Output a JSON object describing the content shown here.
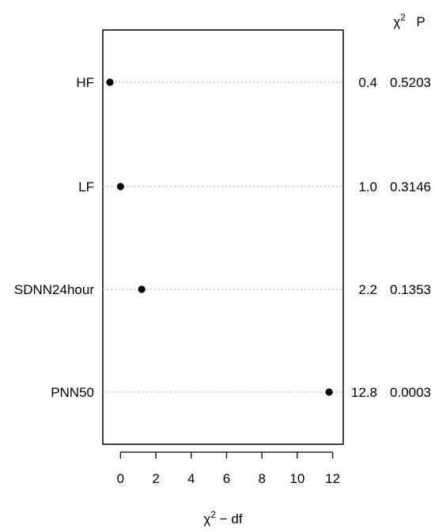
{
  "chart_data": {
    "type": "scatter",
    "xlabel": "χ² − df",
    "xlabel_base": "χ",
    "xlabel_sup": "2",
    "xlabel_rest": " − df",
    "header_chi_base": "χ",
    "header_chi_sup": "2",
    "header_p": "P",
    "xlim": [
      -1.0,
      12.6
    ],
    "xticks": [
      0,
      2,
      4,
      6,
      8,
      10,
      12
    ],
    "grid": "dotted horizontal guide lines",
    "rows": [
      {
        "label": "HF",
        "value": -0.6,
        "chi2": "0.4",
        "p": "0.5203"
      },
      {
        "label": "LF",
        "value": 0.0,
        "chi2": "1.0",
        "p": "0.3146"
      },
      {
        "label": "SDNN24hour",
        "value": 1.2,
        "chi2": "2.2",
        "p": "0.1353"
      },
      {
        "label": "PNN50",
        "value": 11.8,
        "chi2": "12.8",
        "p": "0.0003"
      }
    ]
  }
}
